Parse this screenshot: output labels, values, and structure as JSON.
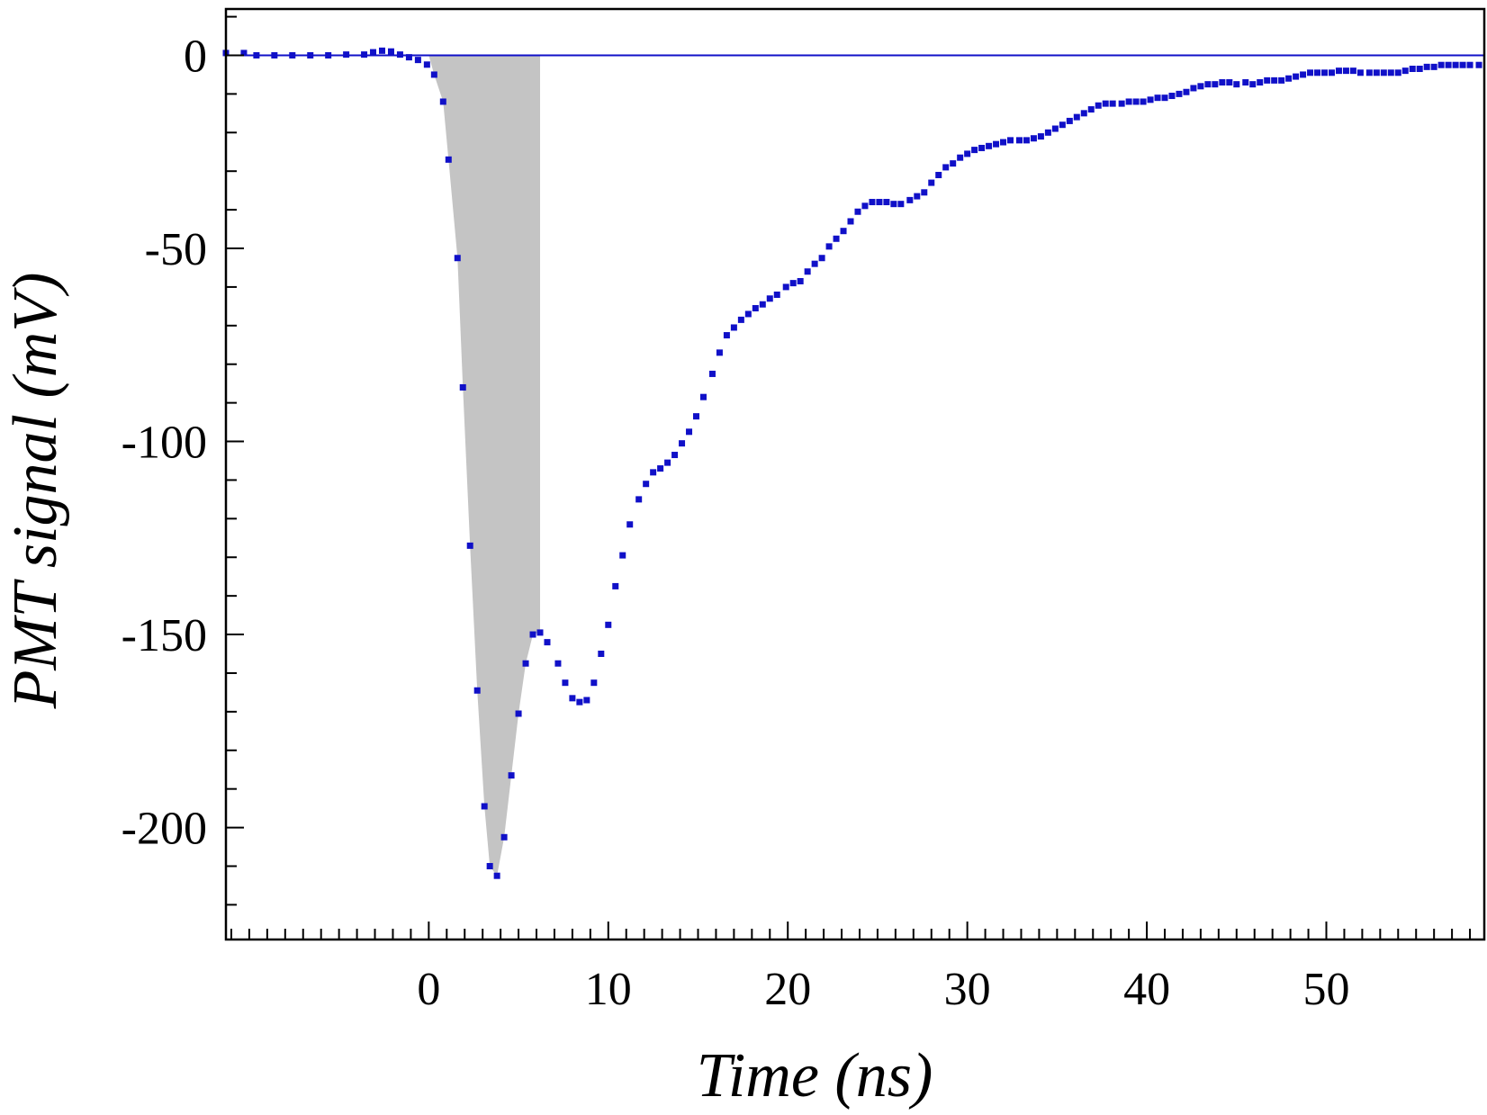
{
  "chart_data": {
    "type": "scatter",
    "xlabel": "Time (ns)",
    "ylabel": "PMT signal (mV)",
    "xlim": [
      -11.3,
      58.8
    ],
    "ylim": [
      -229,
      12
    ],
    "xticks": [
      0,
      10,
      20,
      30,
      40,
      50
    ],
    "yticks": [
      0,
      -50,
      -100,
      -150,
      -200
    ],
    "x_minor_step": 1,
    "y_minor_step": 10,
    "grid": false,
    "colors": {
      "points": "#1010c8",
      "shade": "#c4c4c4",
      "baseline": "#1010c8",
      "axes": "#000000"
    },
    "baseline_y": 0,
    "shaded_region": {
      "x_from": 0,
      "x_to": 6.2,
      "description_value": "integrated signal area"
    },
    "series": [
      {
        "values": [
          [
            -11.3,
            0.6
          ],
          [
            -10.3,
            0.6
          ],
          [
            -9.6,
            0.0
          ],
          [
            -8.6,
            0.0
          ],
          [
            -7.6,
            0.0
          ],
          [
            -6.6,
            0.0
          ],
          [
            -5.6,
            0.0
          ],
          [
            -4.6,
            0.2
          ],
          [
            -3.6,
            0.2
          ],
          [
            -3.1,
            0.8
          ],
          [
            -2.6,
            1.2
          ],
          [
            -2.1,
            1.0
          ],
          [
            -1.6,
            0.2
          ],
          [
            -1.1,
            -0.5
          ],
          [
            -0.6,
            -1.2
          ],
          [
            -0.1,
            -2.4
          ],
          [
            0.3,
            -5.0
          ],
          [
            0.8,
            -12.0
          ],
          [
            1.1,
            -27.0
          ],
          [
            1.6,
            -52.5
          ],
          [
            1.9,
            -86.0
          ],
          [
            2.3,
            -127.0
          ],
          [
            2.7,
            -164.5
          ],
          [
            3.1,
            -194.5
          ],
          [
            3.4,
            -210.0
          ],
          [
            3.8,
            -212.5
          ],
          [
            4.2,
            -202.5
          ],
          [
            4.6,
            -186.5
          ],
          [
            5.0,
            -170.5
          ],
          [
            5.4,
            -157.5
          ],
          [
            5.8,
            -150.0
          ],
          [
            6.2,
            -149.5
          ],
          [
            6.6,
            -152.0
          ],
          [
            7.2,
            -157.5
          ],
          [
            7.6,
            -162.5
          ],
          [
            8.0,
            -166.5
          ],
          [
            8.4,
            -167.5
          ],
          [
            8.8,
            -167.0
          ],
          [
            9.2,
            -162.5
          ],
          [
            9.6,
            -155.0
          ],
          [
            10.0,
            -147.5
          ],
          [
            10.4,
            -137.5
          ],
          [
            10.8,
            -129.5
          ],
          [
            11.2,
            -121.5
          ],
          [
            11.7,
            -115.0
          ],
          [
            12.1,
            -111.0
          ],
          [
            12.5,
            -108.0
          ],
          [
            12.9,
            -107.0
          ],
          [
            13.3,
            -105.5
          ],
          [
            13.7,
            -103.5
          ],
          [
            14.1,
            -100.5
          ],
          [
            14.5,
            -97.5
          ],
          [
            14.9,
            -93.5
          ],
          [
            15.3,
            -88.5
          ],
          [
            15.8,
            -82.5
          ],
          [
            16.2,
            -77.0
          ],
          [
            16.6,
            -72.5
          ],
          [
            17.0,
            -70.5
          ],
          [
            17.4,
            -68.5
          ],
          [
            17.8,
            -67.0
          ],
          [
            18.2,
            -65.5
          ],
          [
            18.6,
            -64.5
          ],
          [
            19.0,
            -63.0
          ],
          [
            19.4,
            -62.0
          ],
          [
            19.9,
            -60.0
          ],
          [
            20.3,
            -59.0
          ],
          [
            20.7,
            -58.5
          ],
          [
            21.1,
            -56.0
          ],
          [
            21.5,
            -54.0
          ],
          [
            21.9,
            -52.5
          ],
          [
            22.3,
            -49.5
          ],
          [
            22.7,
            -47.5
          ],
          [
            23.1,
            -45.5
          ],
          [
            23.5,
            -43.0
          ],
          [
            23.9,
            -40.5
          ],
          [
            24.3,
            -39.0
          ],
          [
            24.7,
            -38.0
          ],
          [
            25.1,
            -38.0
          ],
          [
            25.5,
            -38.0
          ],
          [
            25.9,
            -38.5
          ],
          [
            26.3,
            -38.5
          ],
          [
            26.8,
            -37.5
          ],
          [
            27.2,
            -36.5
          ],
          [
            27.6,
            -35.5
          ],
          [
            28.0,
            -33.0
          ],
          [
            28.4,
            -31.0
          ],
          [
            28.8,
            -29.0
          ],
          [
            29.2,
            -28.0
          ],
          [
            29.6,
            -26.5
          ],
          [
            30.0,
            -25.5
          ],
          [
            30.4,
            -24.5
          ],
          [
            30.8,
            -24.0
          ],
          [
            31.2,
            -23.5
          ],
          [
            31.6,
            -23.0
          ],
          [
            32.0,
            -22.5
          ],
          [
            32.4,
            -22.0
          ],
          [
            32.9,
            -22.0
          ],
          [
            33.3,
            -22.0
          ],
          [
            33.7,
            -21.5
          ],
          [
            34.1,
            -21.0
          ],
          [
            34.5,
            -20.0
          ],
          [
            34.9,
            -19.0
          ],
          [
            35.3,
            -18.0
          ],
          [
            35.7,
            -17.0
          ],
          [
            36.1,
            -16.0
          ],
          [
            36.5,
            -15.0
          ],
          [
            36.9,
            -14.0
          ],
          [
            37.3,
            -13.0
          ],
          [
            37.7,
            -12.5
          ],
          [
            38.1,
            -12.5
          ],
          [
            38.6,
            -12.5
          ],
          [
            39.0,
            -12.0
          ],
          [
            39.4,
            -12.0
          ],
          [
            39.8,
            -12.0
          ],
          [
            40.2,
            -11.5
          ],
          [
            40.6,
            -11.0
          ],
          [
            41.0,
            -11.0
          ],
          [
            41.4,
            -10.5
          ],
          [
            41.8,
            -10.0
          ],
          [
            42.2,
            -9.5
          ],
          [
            42.6,
            -8.5
          ],
          [
            43.0,
            -8.0
          ],
          [
            43.4,
            -7.5
          ],
          [
            43.8,
            -7.5
          ],
          [
            44.2,
            -7.0
          ],
          [
            44.6,
            -7.0
          ],
          [
            45.0,
            -7.5
          ],
          [
            45.5,
            -7.0
          ],
          [
            45.9,
            -7.5
          ],
          [
            46.3,
            -7.0
          ],
          [
            46.7,
            -6.5
          ],
          [
            47.1,
            -6.5
          ],
          [
            47.5,
            -6.5
          ],
          [
            47.9,
            -6.0
          ],
          [
            48.3,
            -5.5
          ],
          [
            48.7,
            -5.0
          ],
          [
            49.1,
            -4.5
          ],
          [
            49.5,
            -4.5
          ],
          [
            49.9,
            -4.5
          ],
          [
            50.3,
            -4.5
          ],
          [
            50.7,
            -4.0
          ],
          [
            51.1,
            -4.0
          ],
          [
            51.5,
            -4.0
          ],
          [
            51.9,
            -4.5
          ],
          [
            52.4,
            -4.5
          ],
          [
            52.8,
            -4.5
          ],
          [
            53.2,
            -4.5
          ],
          [
            53.6,
            -4.5
          ],
          [
            54.0,
            -4.5
          ],
          [
            54.4,
            -4.0
          ],
          [
            54.8,
            -3.5
          ],
          [
            55.2,
            -3.5
          ],
          [
            55.6,
            -3.0
          ],
          [
            56.0,
            -3.0
          ],
          [
            56.4,
            -2.5
          ],
          [
            56.8,
            -2.5
          ],
          [
            57.2,
            -2.5
          ],
          [
            57.6,
            -2.5
          ],
          [
            58.0,
            -2.5
          ],
          [
            58.5,
            -2.5
          ]
        ]
      }
    ]
  }
}
